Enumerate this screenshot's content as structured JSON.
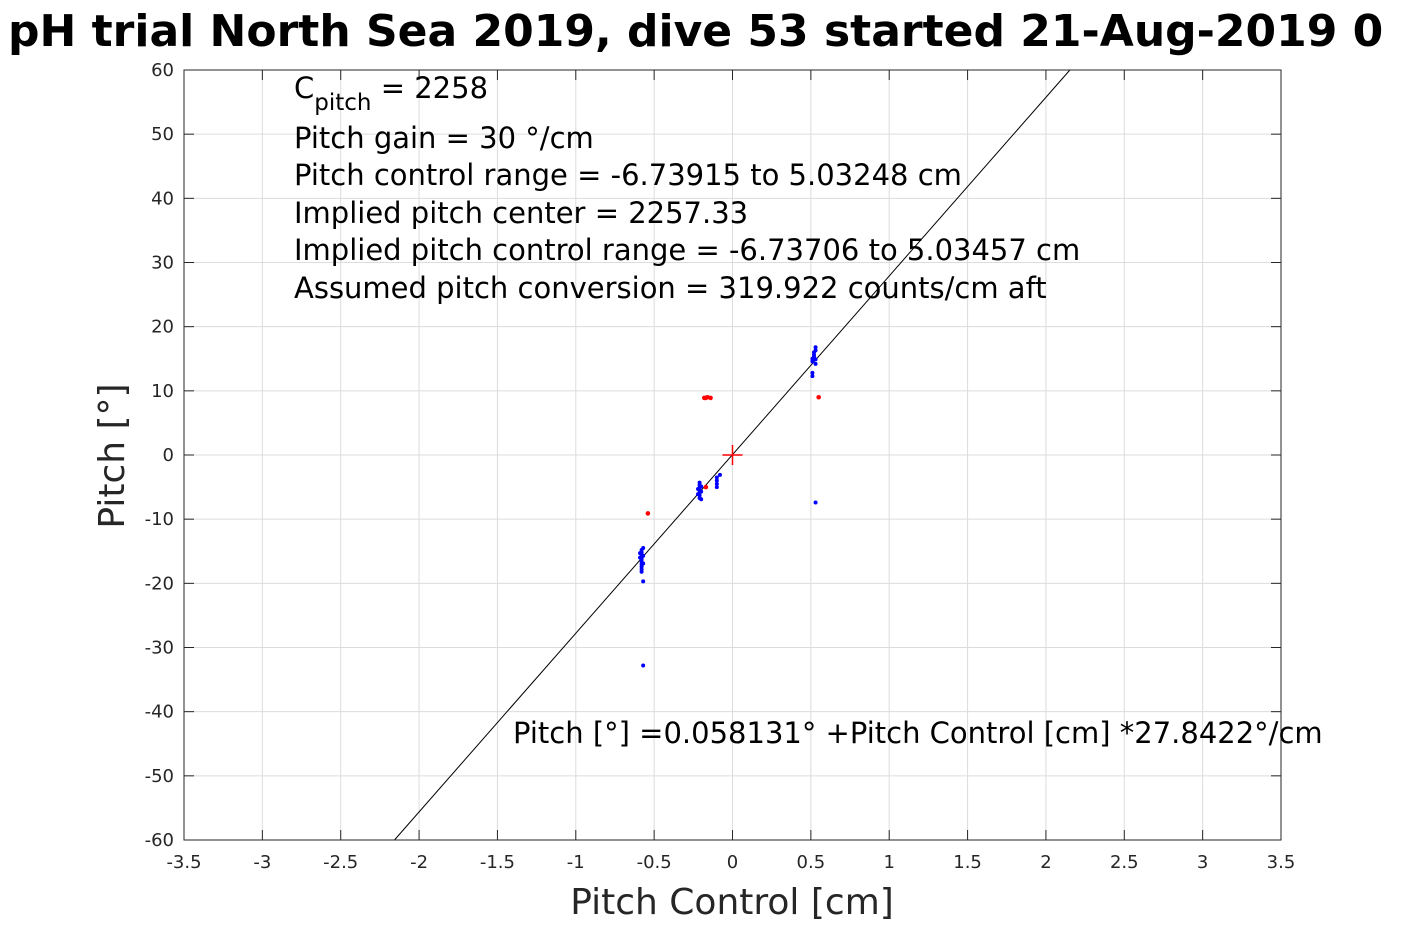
{
  "chart_data": {
    "type": "scatter",
    "title": "pH trial North Sea 2019, dive 53 started 21-Aug-2019 0",
    "xlabel": "Pitch Control [cm]",
    "ylabel": "Pitch [°]",
    "xlim": [
      -3.5,
      3.5
    ],
    "ylim": [
      -60,
      60
    ],
    "xticks": [
      -3.5,
      -3,
      -2.5,
      -2,
      -1.5,
      -1,
      -0.5,
      0,
      0.5,
      1,
      1.5,
      2,
      2.5,
      3,
      3.5
    ],
    "xtick_labels": [
      "-3.5",
      "-3",
      "-2.5",
      "-2",
      "-1.5",
      "-1",
      "-0.5",
      "0",
      "0.5",
      "1",
      "1.5",
      "2",
      "2.5",
      "3",
      "3.5"
    ],
    "yticks": [
      -60,
      -50,
      -40,
      -30,
      -20,
      -10,
      0,
      10,
      20,
      30,
      40,
      50,
      60
    ],
    "ytick_labels": [
      "-60",
      "-50",
      "-40",
      "-30",
      "-20",
      "-10",
      "0",
      "10",
      "20",
      "30",
      "40",
      "50",
      "60"
    ],
    "grid": true,
    "fit_line": {
      "intercept": 0.058131,
      "slope": 27.8422,
      "color": "#000000"
    },
    "center_marker": {
      "x": 0,
      "y": 0,
      "color": "#ff0000"
    },
    "series": [
      {
        "color": "#0000ff",
        "points": [
          [
            -0.58,
            -14.8
          ],
          [
            -0.58,
            -15.2
          ],
          [
            -0.58,
            -15.5
          ],
          [
            -0.58,
            -15.9
          ],
          [
            -0.58,
            -16.2
          ],
          [
            -0.58,
            -16.6
          ],
          [
            -0.58,
            -17.0
          ],
          [
            -0.58,
            -17.4
          ],
          [
            -0.58,
            -17.8
          ],
          [
            -0.58,
            -18.2
          ],
          [
            -0.57,
            -14.5
          ],
          [
            -0.57,
            -15.7
          ],
          [
            -0.57,
            -16.9
          ],
          [
            -0.59,
            -16.0
          ],
          [
            -0.59,
            -15.3
          ],
          [
            -0.57,
            -19.7
          ],
          [
            -0.57,
            -32.8
          ],
          [
            -0.21,
            -4.3
          ],
          [
            -0.21,
            -4.7
          ],
          [
            -0.21,
            -5.1
          ],
          [
            -0.21,
            -5.5
          ],
          [
            -0.21,
            -5.9
          ],
          [
            -0.21,
            -6.3
          ],
          [
            -0.21,
            -6.7
          ],
          [
            -0.2,
            -4.9
          ],
          [
            -0.2,
            -5.7
          ],
          [
            -0.22,
            -5.3
          ],
          [
            -0.22,
            -6.1
          ],
          [
            -0.2,
            -6.9
          ],
          [
            -0.1,
            -3.5
          ],
          [
            -0.1,
            -4.0
          ],
          [
            -0.1,
            -4.5
          ],
          [
            -0.1,
            -5.0
          ],
          [
            -0.08,
            -3.1
          ],
          [
            0.51,
            12.3
          ],
          [
            0.51,
            12.8
          ],
          [
            0.51,
            14.6
          ],
          [
            0.51,
            15.0
          ],
          [
            0.52,
            15.3
          ],
          [
            0.52,
            15.6
          ],
          [
            0.52,
            16.0
          ],
          [
            0.53,
            14.2
          ],
          [
            0.53,
            14.9
          ],
          [
            0.53,
            16.3
          ],
          [
            0.53,
            16.8
          ],
          [
            0.53,
            -7.4
          ]
        ]
      },
      {
        "color": "#ff0000",
        "points": [
          [
            -0.54,
            -9.1
          ],
          [
            -0.18,
            8.9
          ],
          [
            -0.17,
            8.9
          ],
          [
            -0.16,
            9.0
          ],
          [
            -0.14,
            8.9
          ],
          [
            -0.17,
            -5.0
          ],
          [
            0.55,
            9.0
          ]
        ]
      }
    ],
    "annotations": [
      {
        "lines": [
          {
            "text": "C",
            "sub": "pitch",
            "after": " = 2258"
          },
          {
            "text": "Pitch gain = 30 °/cm"
          },
          {
            "text": "Pitch control range = -6.73915 to 5.03248 cm"
          },
          {
            "text": "Implied pitch center = 2257.33"
          },
          {
            "text": "Implied pitch control range = -6.73706 to 5.03457 cm"
          },
          {
            "text": "Assumed pitch conversion = 319.922 counts/cm aft"
          }
        ]
      },
      {
        "text": "Pitch [°] =0.058131° +Pitch Control [cm] *27.8422°/cm"
      }
    ]
  }
}
